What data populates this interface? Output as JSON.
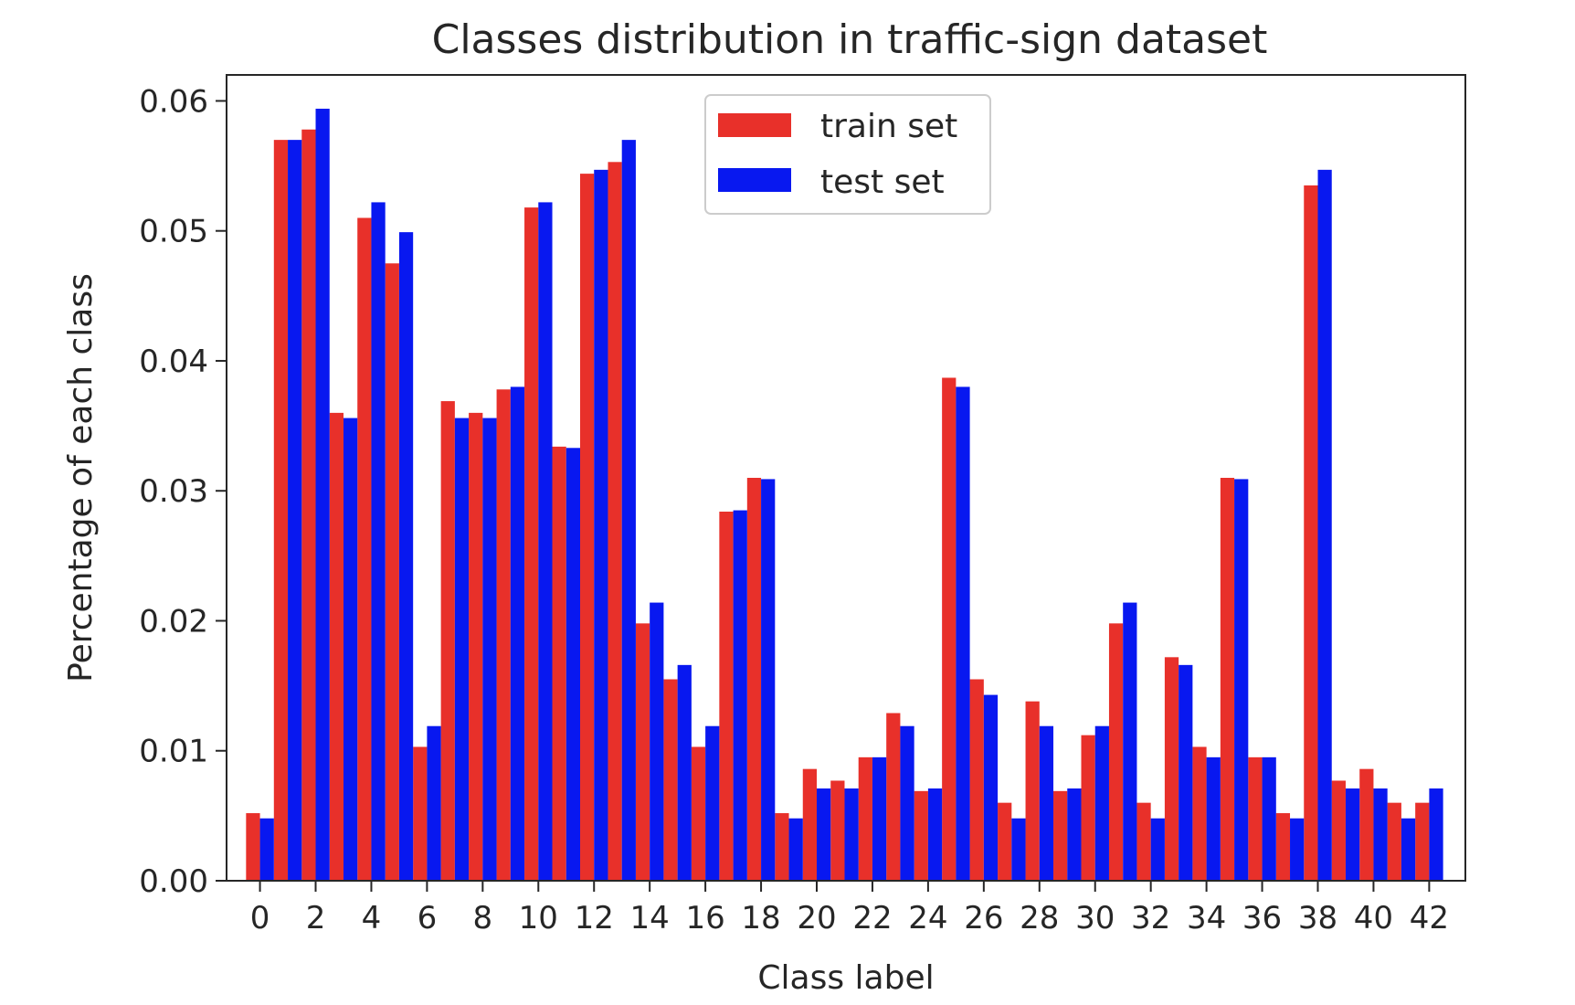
{
  "chart_data": {
    "type": "bar",
    "title": "Classes distribution in traffic-sign dataset",
    "xlabel": "Class label",
    "ylabel": "Percentage of each class",
    "ylim": [
      0,
      0.062
    ],
    "xlim": [
      -1.2,
      43.3
    ],
    "grid": false,
    "legend_position": "top-center",
    "categories": [
      0,
      1,
      2,
      3,
      4,
      5,
      6,
      7,
      8,
      9,
      10,
      11,
      12,
      13,
      14,
      15,
      16,
      17,
      18,
      19,
      20,
      21,
      22,
      23,
      24,
      25,
      26,
      27,
      28,
      29,
      30,
      31,
      32,
      33,
      34,
      35,
      36,
      37,
      38,
      39,
      40,
      41,
      42
    ],
    "xticks": [
      0,
      2,
      4,
      6,
      8,
      10,
      12,
      14,
      16,
      18,
      20,
      22,
      24,
      26,
      28,
      30,
      32,
      34,
      36,
      38,
      40,
      42
    ],
    "xtick_labels": [
      "0",
      "2",
      "4",
      "6",
      "8",
      "10",
      "12",
      "14",
      "16",
      "18",
      "20",
      "22",
      "24",
      "26",
      "28",
      "30",
      "32",
      "34",
      "36",
      "38",
      "40",
      "42"
    ],
    "yticks": [
      0,
      0.01,
      0.02,
      0.03,
      0.04,
      0.05,
      0.06
    ],
    "ytick_labels": [
      "0.00",
      "0.01",
      "0.02",
      "0.03",
      "0.04",
      "0.05",
      "0.06"
    ],
    "series": [
      {
        "name": "train set",
        "color": "#e8302a",
        "values": [
          0.0052,
          0.057,
          0.0578,
          0.036,
          0.051,
          0.0475,
          0.0103,
          0.0369,
          0.036,
          0.0378,
          0.0518,
          0.0334,
          0.0544,
          0.0553,
          0.0198,
          0.0155,
          0.0103,
          0.0284,
          0.031,
          0.0052,
          0.0086,
          0.0077,
          0.0095,
          0.0129,
          0.0069,
          0.0387,
          0.0155,
          0.006,
          0.0138,
          0.0069,
          0.0112,
          0.0198,
          0.006,
          0.0172,
          0.0103,
          0.031,
          0.0095,
          0.0052,
          0.0535,
          0.0077,
          0.0086,
          0.006,
          0.006
        ]
      },
      {
        "name": "test set",
        "color": "#0818f0",
        "values": [
          0.0048,
          0.057,
          0.0594,
          0.0356,
          0.0522,
          0.0499,
          0.0119,
          0.0356,
          0.0356,
          0.038,
          0.0522,
          0.0333,
          0.0547,
          0.057,
          0.0214,
          0.0166,
          0.0119,
          0.0285,
          0.0309,
          0.0048,
          0.0071,
          0.0071,
          0.0095,
          0.0119,
          0.0071,
          0.038,
          0.0143,
          0.0048,
          0.0119,
          0.0071,
          0.0119,
          0.0214,
          0.0048,
          0.0166,
          0.0095,
          0.0309,
          0.0095,
          0.0048,
          0.0547,
          0.0071,
          0.0071,
          0.0048,
          0.0071
        ]
      }
    ]
  }
}
